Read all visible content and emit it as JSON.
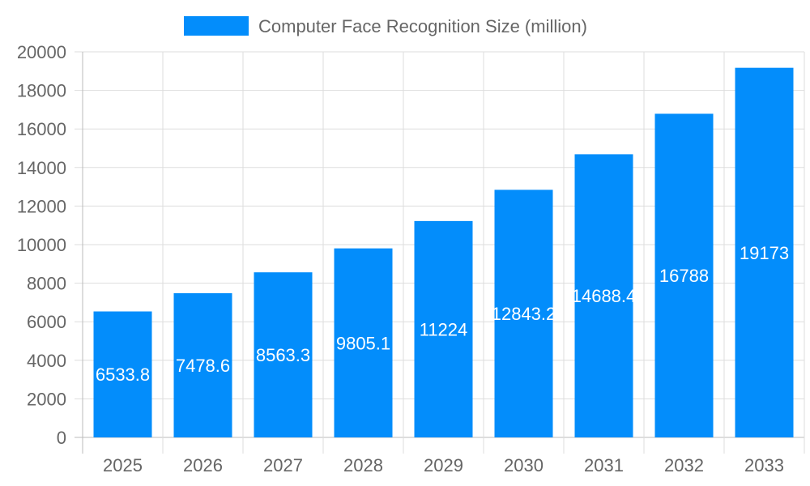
{
  "chart_data": {
    "type": "bar",
    "categories": [
      "2025",
      "2026",
      "2027",
      "2028",
      "2029",
      "2030",
      "2031",
      "2032",
      "2033"
    ],
    "series": [
      {
        "name": "Computer Face Recognition Size (million)",
        "values": [
          6533.8,
          7478.6,
          8563.3,
          9805.1,
          11224,
          12843.2,
          14688.4,
          16788,
          19173
        ],
        "labels": [
          "6533.8",
          "7478.6",
          "8563.3",
          "9805.1",
          "11224",
          "12843.2",
          "14688.4",
          "16788",
          "19173"
        ],
        "color": "#038dfb"
      }
    ],
    "ylim": [
      0,
      20000
    ],
    "yticks": [
      "0",
      "2000",
      "4000",
      "6000",
      "8000",
      "10000",
      "12000",
      "14000",
      "16000",
      "18000",
      "20000"
    ],
    "grid": true,
    "legend": "top"
  }
}
